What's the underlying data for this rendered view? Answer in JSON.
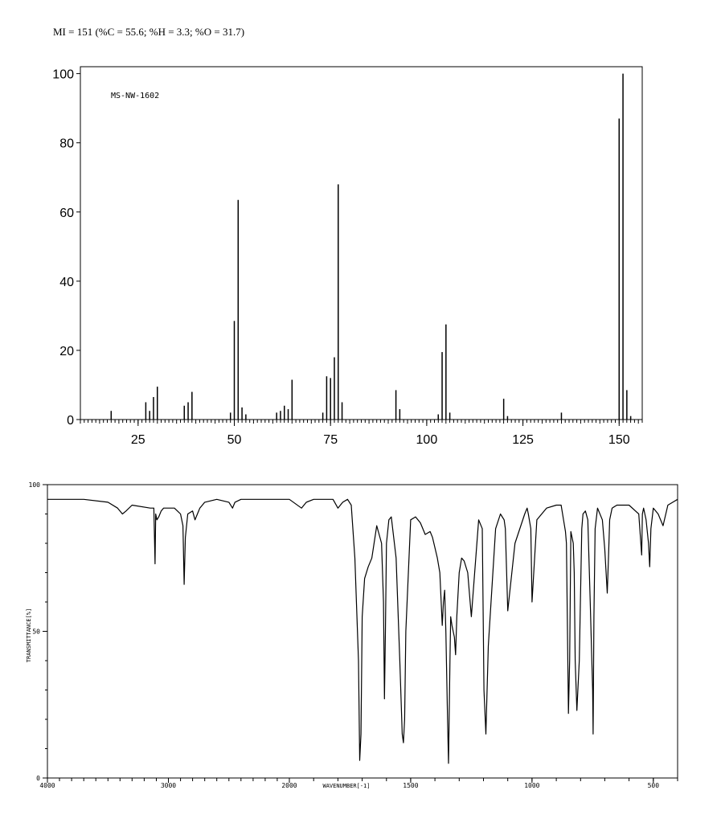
{
  "header": {
    "formula_line": "MI = 151 (%C = 55.6; %H = 3.3; %O = 31.7)"
  },
  "chart_data": [
    {
      "type": "bar",
      "kind": "mass-spectrum",
      "annotation": "MS-NW-1602",
      "xlabel": "",
      "ylabel": "",
      "xlim": [
        10,
        156
      ],
      "ylim": [
        0,
        102
      ],
      "x_ticks": [
        25,
        50,
        75,
        100,
        125,
        150
      ],
      "y_ticks": [
        0,
        20,
        40,
        60,
        80,
        100
      ],
      "x_tick_labels": [
        "25",
        "50",
        "75",
        "100",
        "125",
        "150"
      ],
      "y_tick_labels": [
        "0",
        "20",
        "40",
        "60",
        "80",
        "100"
      ],
      "grid": false,
      "peaks": [
        {
          "x": 18,
          "y": 2.5
        },
        {
          "x": 27,
          "y": 5
        },
        {
          "x": 28,
          "y": 2.5
        },
        {
          "x": 29,
          "y": 6.5
        },
        {
          "x": 30,
          "y": 9.5
        },
        {
          "x": 37,
          "y": 4
        },
        {
          "x": 38,
          "y": 5
        },
        {
          "x": 39,
          "y": 8
        },
        {
          "x": 49,
          "y": 2
        },
        {
          "x": 50,
          "y": 28.5
        },
        {
          "x": 51,
          "y": 63.5
        },
        {
          "x": 52,
          "y": 3.5
        },
        {
          "x": 53,
          "y": 1.5
        },
        {
          "x": 61,
          "y": 2
        },
        {
          "x": 62,
          "y": 2.5
        },
        {
          "x": 63,
          "y": 4
        },
        {
          "x": 64,
          "y": 3
        },
        {
          "x": 65,
          "y": 11.5
        },
        {
          "x": 73,
          "y": 2
        },
        {
          "x": 74,
          "y": 12.5
        },
        {
          "x": 75,
          "y": 12
        },
        {
          "x": 76,
          "y": 18
        },
        {
          "x": 77,
          "y": 68
        },
        {
          "x": 78,
          "y": 5
        },
        {
          "x": 92,
          "y": 8.5
        },
        {
          "x": 93,
          "y": 3
        },
        {
          "x": 103,
          "y": 1.5
        },
        {
          "x": 104,
          "y": 19.5
        },
        {
          "x": 105,
          "y": 27.5
        },
        {
          "x": 106,
          "y": 2
        },
        {
          "x": 120,
          "y": 6
        },
        {
          "x": 121,
          "y": 1
        },
        {
          "x": 135,
          "y": 2
        },
        {
          "x": 150,
          "y": 87
        },
        {
          "x": 151,
          "y": 100
        },
        {
          "x": 152,
          "y": 8.5
        },
        {
          "x": 153,
          "y": 1
        }
      ]
    },
    {
      "type": "line",
      "kind": "ir-spectrum",
      "xlabel": "WAVENUMBER[-1]",
      "ylabel": "TRANSMITTANCE[%]",
      "xlim": [
        4000,
        400
      ],
      "ylim": [
        0,
        100
      ],
      "x_ticks": [
        4000,
        3000,
        2000,
        1500,
        1000,
        500
      ],
      "y_ticks": [
        0,
        50,
        100
      ],
      "x_tick_labels": [
        "4000",
        "3000",
        "2000",
        "1500",
        "1000",
        "500"
      ],
      "y_tick_labels": [
        "0",
        "50",
        "100"
      ],
      "grid": false,
      "series": [
        {
          "x": [
            4000,
            3700,
            3500,
            3420,
            3380,
            3350,
            3300,
            3150,
            3120,
            3110,
            3105,
            3095,
            3080,
            3060,
            3040,
            3000,
            2950,
            2900,
            2880,
            2870,
            2860,
            2840,
            2800,
            2780,
            2760,
            2740,
            2700,
            2600,
            2500,
            2470,
            2450,
            2400,
            2200,
            2000,
            1950,
            1930,
            1900,
            1820,
            1800,
            1780,
            1760,
            1745,
            1730,
            1715,
            1710,
            1705,
            1700,
            1690,
            1675,
            1660,
            1640,
            1620,
            1612,
            1608,
            1604,
            1600,
            1590,
            1580,
            1560,
            1545,
            1535,
            1530,
            1525,
            1520,
            1500,
            1480,
            1460,
            1440,
            1420,
            1410,
            1390,
            1380,
            1370,
            1365,
            1360,
            1355,
            1348,
            1344,
            1338,
            1335,
            1330,
            1320,
            1315,
            1310,
            1300,
            1290,
            1280,
            1265,
            1250,
            1220,
            1205,
            1198,
            1190,
            1180,
            1150,
            1130,
            1115,
            1110,
            1100,
            1070,
            1030,
            1020,
            1015,
            1005,
            1000,
            980,
            940,
            900,
            880,
            870,
            862,
            858,
            850,
            845,
            840,
            830,
            826,
            822,
            815,
            805,
            795,
            790,
            780,
            770,
            760,
            750,
            748,
            745,
            740,
            730,
            710,
            700,
            690,
            685,
            680,
            670,
            650,
            600,
            560,
            548,
            545,
            540,
            530,
            520,
            515,
            510,
            500,
            480,
            460,
            440,
            420,
            400
          ],
          "y": [
            95,
            95,
            94,
            92,
            90,
            91,
            93,
            92,
            92,
            73,
            90,
            88,
            89,
            91,
            92,
            92,
            92,
            90,
            86,
            66,
            82,
            90,
            91,
            88,
            90,
            92,
            94,
            95,
            94,
            92,
            94,
            95,
            95,
            95,
            92,
            94,
            95,
            95,
            92,
            94,
            95,
            93,
            75,
            40,
            6,
            15,
            55,
            68,
            72,
            75,
            86,
            80,
            60,
            27,
            50,
            80,
            88,
            89,
            75,
            40,
            15,
            12,
            20,
            50,
            88,
            89,
            87,
            83,
            84,
            82,
            75,
            70,
            52,
            60,
            64,
            50,
            20,
            5,
            40,
            55,
            52,
            48,
            42,
            55,
            70,
            75,
            74,
            70,
            55,
            88,
            85,
            30,
            15,
            45,
            85,
            90,
            88,
            85,
            57,
            80,
            90,
            92,
            90,
            85,
            60,
            88,
            92,
            93,
            93,
            88,
            84,
            80,
            22,
            40,
            84,
            80,
            70,
            40,
            23,
            40,
            85,
            90,
            91,
            88,
            60,
            30,
            15,
            55,
            85,
            92,
            88,
            78,
            63,
            75,
            88,
            92,
            93,
            93,
            90,
            76,
            90,
            92,
            88,
            80,
            72,
            85,
            92,
            90,
            86,
            93,
            94,
            95
          ]
        }
      ]
    }
  ]
}
